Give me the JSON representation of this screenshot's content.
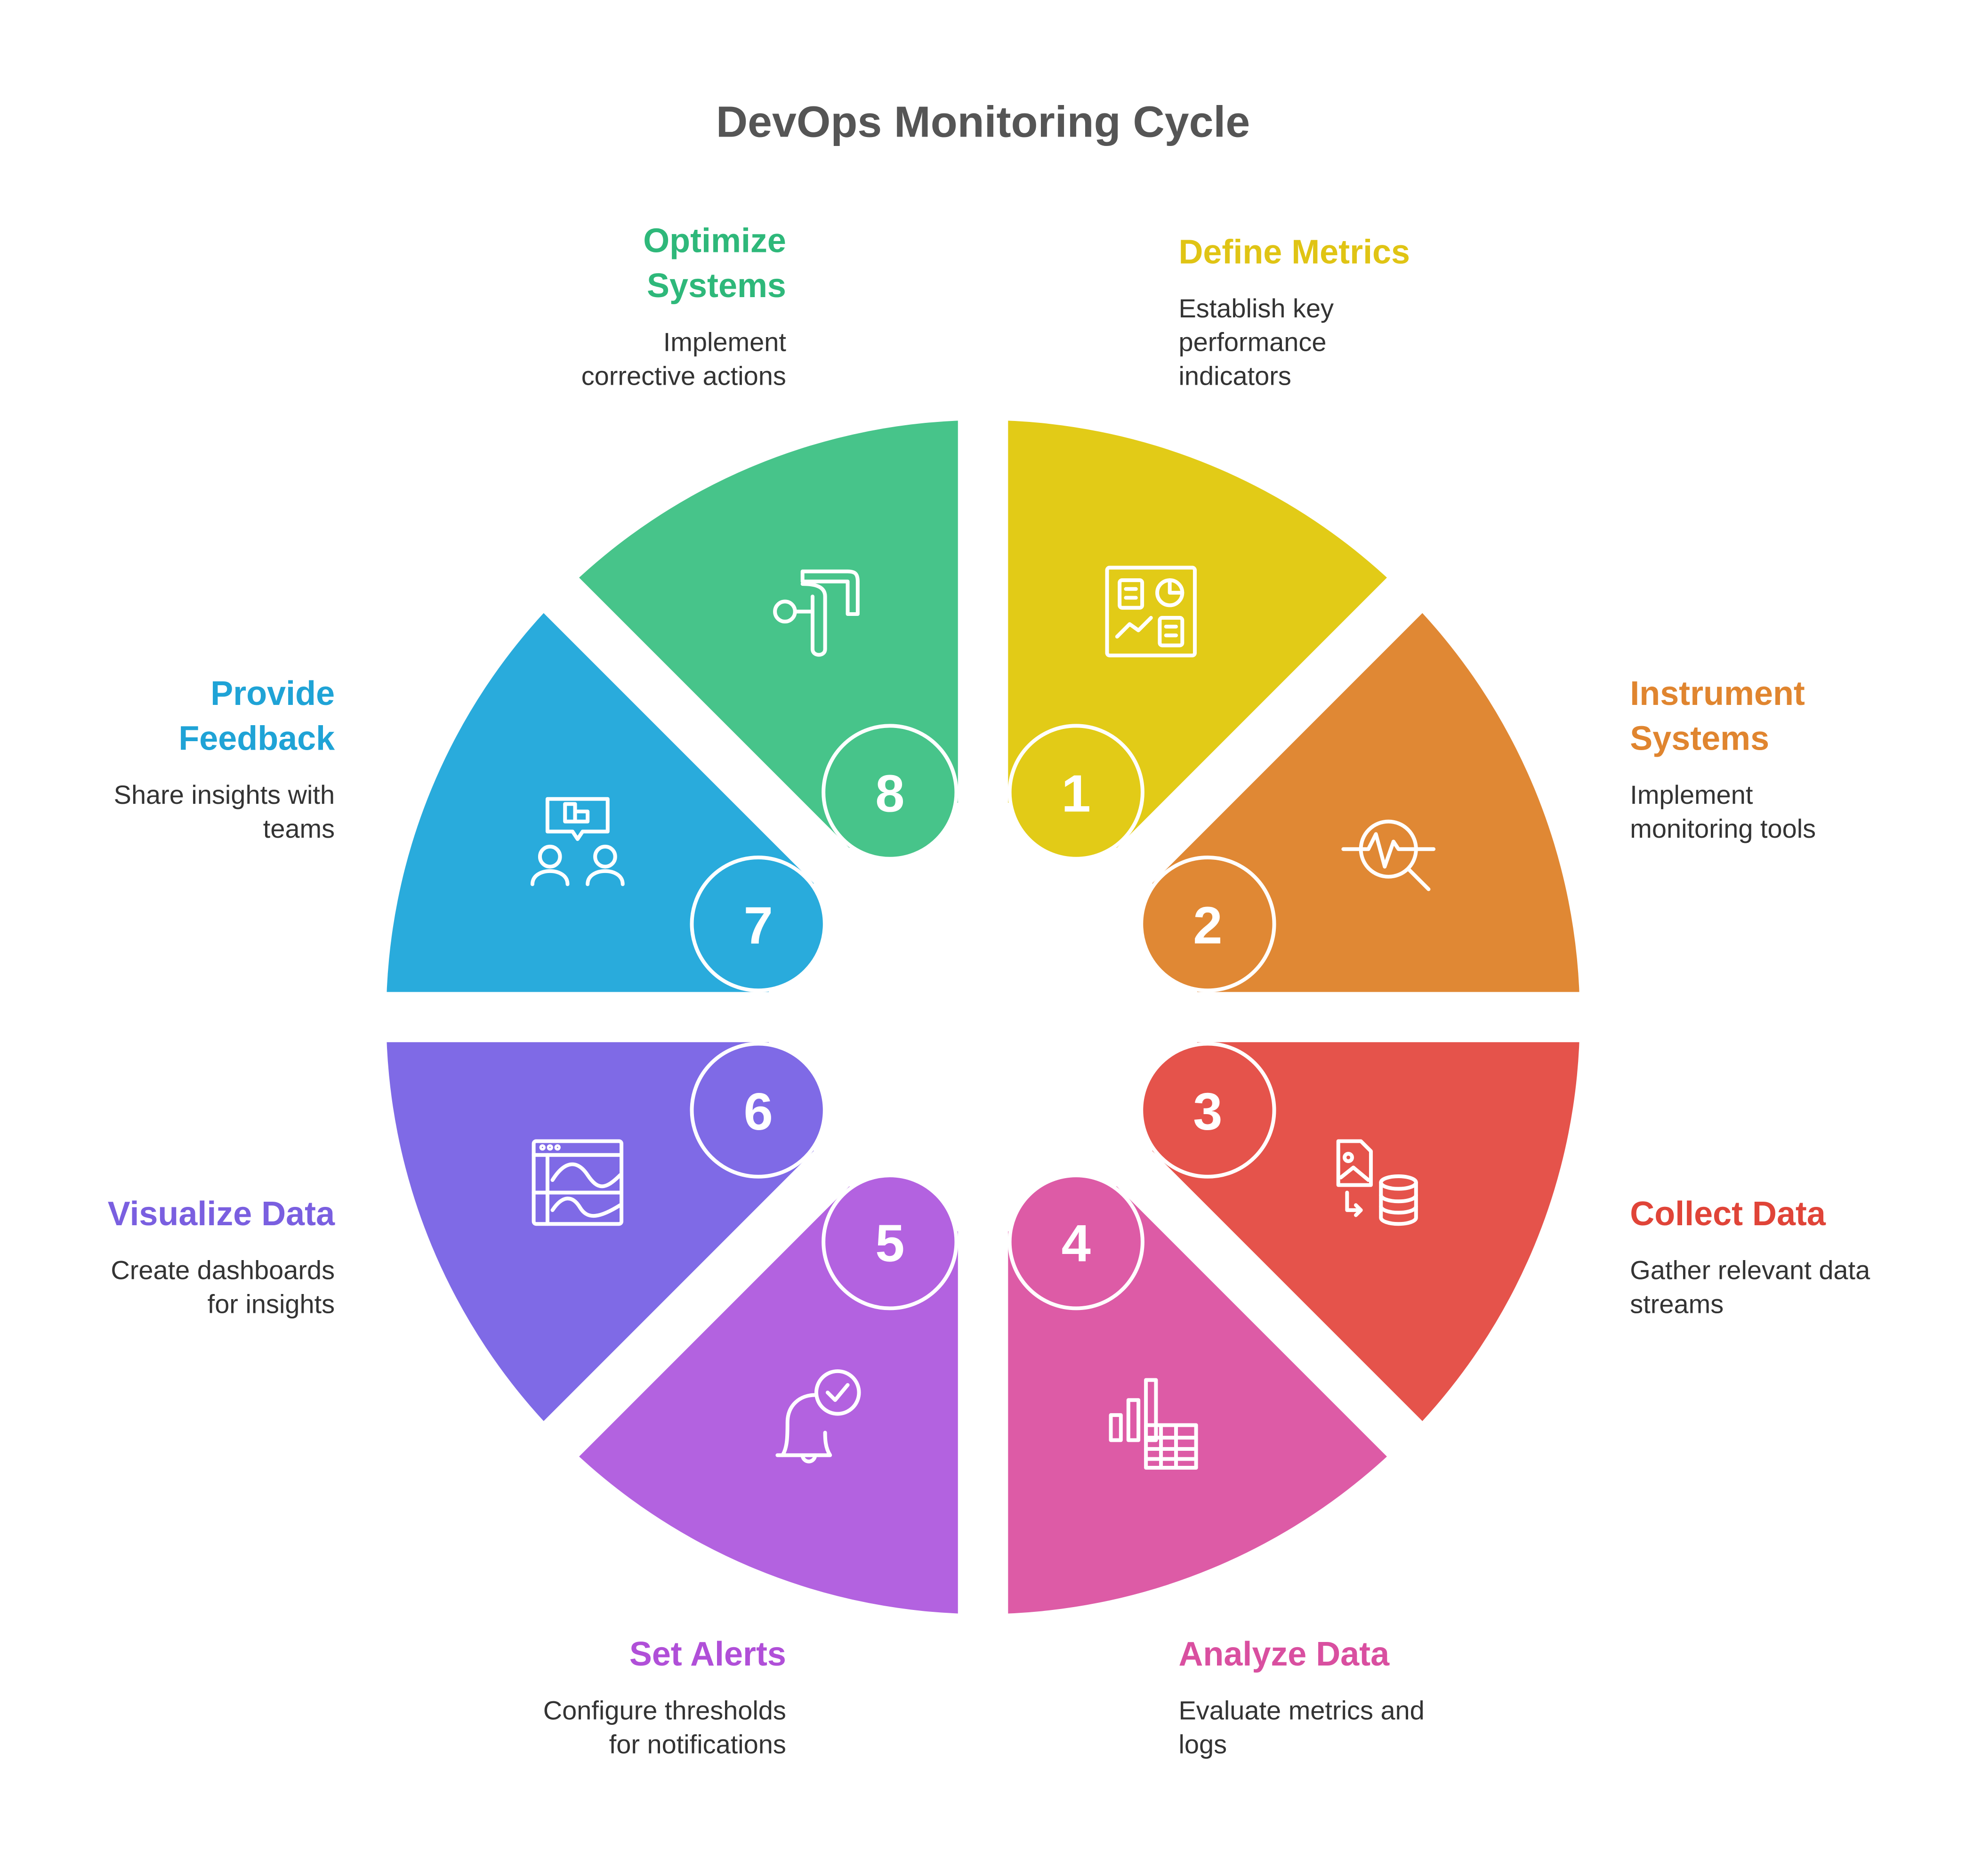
{
  "title": "DevOps Monitoring Cycle",
  "steps": [
    {
      "number": "1",
      "title": [
        "Define Metrics"
      ],
      "description": [
        "Establish key",
        "performance",
        "indicators"
      ],
      "color": "#E2CB17",
      "text_color": "#E0C414",
      "icon": "dashboard-icon"
    },
    {
      "number": "2",
      "title": [
        "Instrument",
        "Systems"
      ],
      "description": [
        "Implement",
        "monitoring tools"
      ],
      "color": "#E08834",
      "text_color": "#E0852F",
      "icon": "pulse-search-icon"
    },
    {
      "number": "3",
      "title": [
        "Collect Data"
      ],
      "description": [
        "Gather relevant data",
        "streams"
      ],
      "color": "#E5534B",
      "text_color": "#E04438",
      "icon": "file-database-icon"
    },
    {
      "number": "4",
      "title": [
        "Analyze Data"
      ],
      "description": [
        "Evaluate metrics and",
        "logs"
      ],
      "color": "#DD5BA6",
      "text_color": "#D94FA0",
      "icon": "chart-table-icon"
    },
    {
      "number": "5",
      "title": [
        "Set Alerts"
      ],
      "description": [
        "Configure thresholds",
        "for notifications"
      ],
      "color": "#B362E0",
      "text_color": "#B04FD8",
      "icon": "bell-check-icon"
    },
    {
      "number": "6",
      "title": [
        "Visualize Data"
      ],
      "description": [
        "Create dashboards",
        "for insights"
      ],
      "color": "#7F6AE6",
      "text_color": "#7A5FE0",
      "icon": "browser-chart-icon"
    },
    {
      "number": "7",
      "title": [
        "Provide",
        "Feedback"
      ],
      "description": [
        "Share insights with",
        "teams"
      ],
      "color": "#29ABDC",
      "text_color": "#1FA3D6",
      "icon": "team-feedback-icon"
    },
    {
      "number": "8",
      "title": [
        "Optimize",
        "Systems"
      ],
      "description": [
        "Implement",
        "corrective actions"
      ],
      "color": "#47C48A",
      "text_color": "#2EB87A",
      "icon": "route-icon"
    }
  ]
}
